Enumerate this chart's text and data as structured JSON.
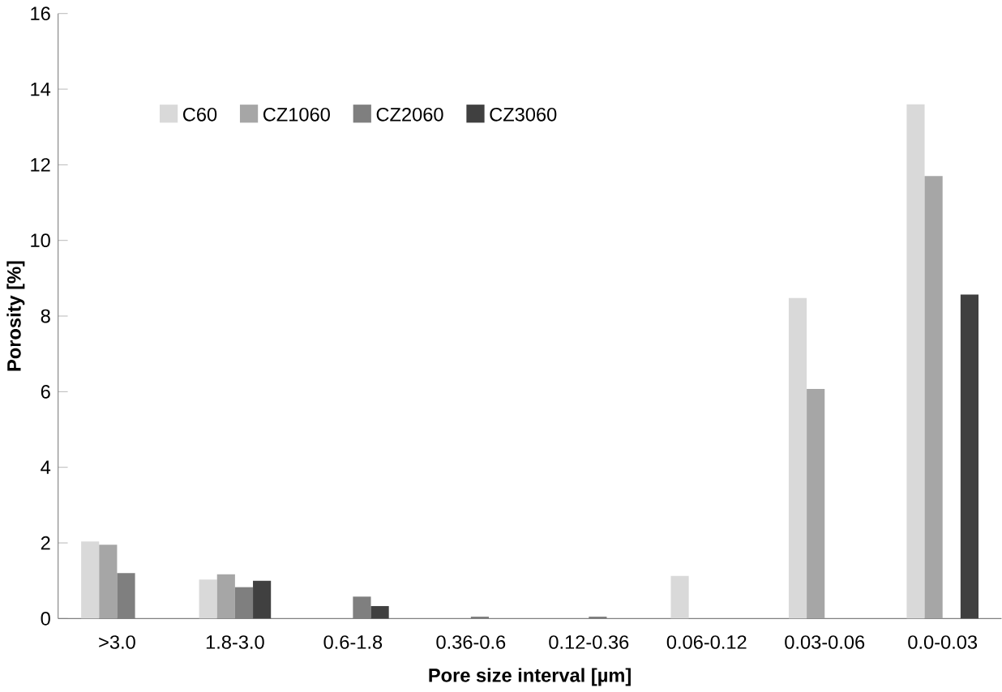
{
  "chart_data": {
    "type": "bar",
    "xlabel": "Pore size interval [µm]",
    "ylabel": "Porosity [%]",
    "categories": [
      ">3.0",
      "1.8-3.0",
      "0.6-1.8",
      "0.36-0.6",
      "0.12-0.36",
      "0.06-0.12",
      "0.03-0.06",
      "0.0-0.03"
    ],
    "series": [
      {
        "name": "C60",
        "color": "#d9d9d9",
        "values": [
          2.04,
          1.03,
          0,
          0,
          0,
          1.13,
          8.48,
          13.6
        ]
      },
      {
        "name": "CZ1060",
        "color": "#a6a6a6",
        "values": [
          1.95,
          1.17,
          0,
          0,
          0,
          0,
          6.07,
          11.7
        ]
      },
      {
        "name": "CZ2060",
        "color": "#7f7f7f",
        "values": [
          1.2,
          0.83,
          0.58,
          0.05,
          0.05,
          0,
          0,
          0
        ]
      },
      {
        "name": "CZ3060",
        "color": "#404040",
        "values": [
          0,
          1.0,
          0.33,
          0,
          0,
          0,
          0,
          8.57
        ]
      }
    ],
    "ylim": [
      0,
      16
    ],
    "yticks": [
      0,
      2,
      4,
      6,
      8,
      10,
      12,
      14,
      16
    ],
    "grid": false,
    "legend": "top left"
  }
}
